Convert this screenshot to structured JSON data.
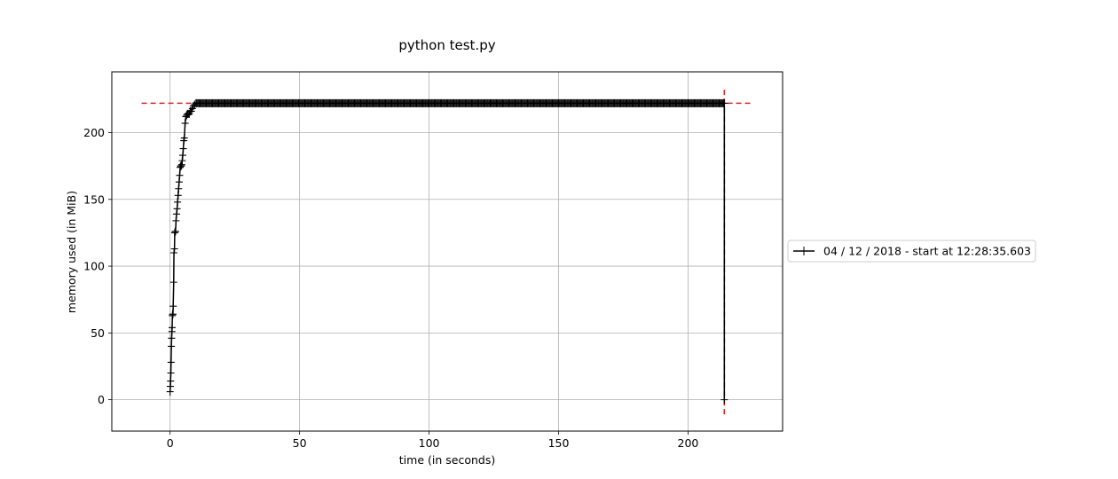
{
  "chart_data": {
    "type": "line",
    "title": "python test.py",
    "xlabel": "time (in seconds)",
    "ylabel": "memory used (in MiB)",
    "xlim": [
      -22.5,
      236.5
    ],
    "ylim": [
      -23.5,
      245.5
    ],
    "xticks": [
      0,
      50,
      100,
      150,
      200
    ],
    "yticks": [
      0,
      50,
      100,
      150,
      200
    ],
    "xtick_labels": [
      "0",
      "50",
      "100",
      "150",
      "200"
    ],
    "ytick_labels": [
      "0",
      "50",
      "100",
      "150",
      "200"
    ],
    "grid": true,
    "legend_position": "right, outside plot",
    "series": [
      {
        "name": "04 / 12 / 2018 - start at 12:28:35.603",
        "color": "#000000",
        "marker": "+",
        "x": [
          0.0,
          0.1,
          0.2,
          0.3,
          0.4,
          0.5,
          0.6,
          0.7,
          0.8,
          0.9,
          1.0,
          1.1,
          1.2,
          1.4,
          1.5,
          1.7,
          1.8,
          2.0,
          2.1,
          2.3,
          2.5,
          2.7,
          2.9,
          3.1,
          3.3,
          3.5,
          3.7,
          3.9,
          4.1,
          4.3,
          4.5,
          4.7,
          4.9,
          5.1,
          5.3,
          5.5,
          5.8,
          6.1,
          6.4,
          6.7,
          7.0,
          7.4,
          7.8,
          8.2,
          8.6,
          9.0,
          9.5,
          10.0,
          214.0,
          214.0
        ],
        "y": [
          6,
          10,
          14,
          20,
          28,
          40,
          46,
          51,
          54,
          63,
          64,
          64,
          70,
          88,
          110,
          113,
          125,
          126,
          126,
          134,
          139,
          143,
          148,
          153,
          158,
          163,
          168,
          174,
          175,
          175,
          176,
          179,
          183,
          188,
          194,
          196,
          207,
          212,
          213,
          214,
          214,
          214,
          216,
          216,
          218,
          220,
          221,
          222,
          222,
          0
        ]
      }
    ],
    "reference_lines": [
      {
        "orientation": "horizontal",
        "value": 222,
        "range": [
          -11,
          225
        ],
        "color": "#d62728",
        "style": "dashed"
      },
      {
        "orientation": "vertical",
        "value": 214,
        "range": [
          -11,
          233
        ],
        "color": "#d62728",
        "style": "dashed"
      }
    ]
  }
}
